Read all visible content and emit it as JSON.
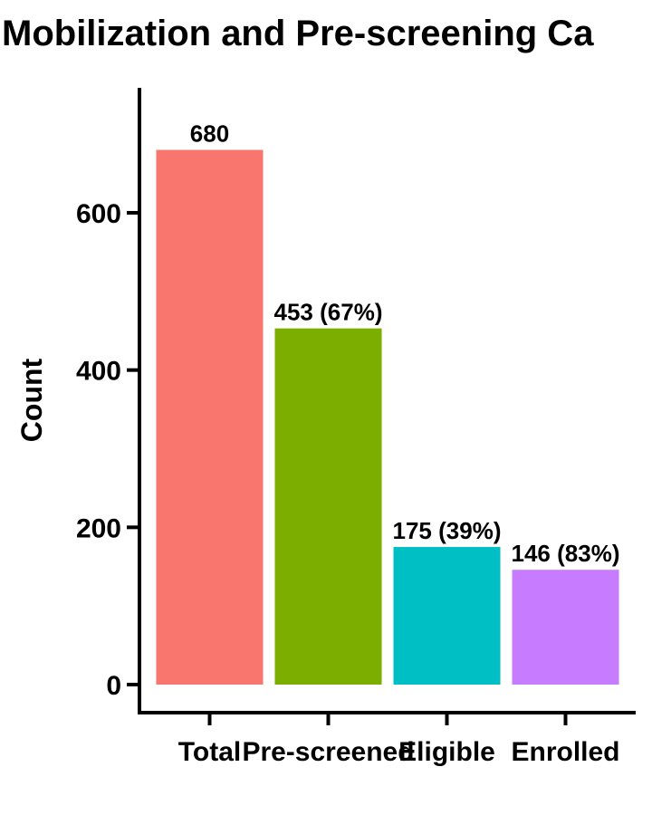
{
  "chart_data": {
    "type": "bar",
    "title": "Mobilization and Pre-screening Ca",
    "xlabel": "",
    "ylabel": "Count",
    "categories": [
      "Total",
      "Pre-screened",
      "Eligible",
      "Enrolled"
    ],
    "values": [
      680,
      453,
      175,
      146
    ],
    "data_labels": [
      "680",
      "453 (67%)",
      "175 (39%)",
      "146 (83%)"
    ],
    "colors": [
      "#F8766D",
      "#7CAE00",
      "#00BFC4",
      "#C77CFF"
    ],
    "ylim": [
      0,
      760
    ],
    "yticks": [
      0,
      200,
      400,
      600
    ],
    "grid": false,
    "legend": "none"
  }
}
